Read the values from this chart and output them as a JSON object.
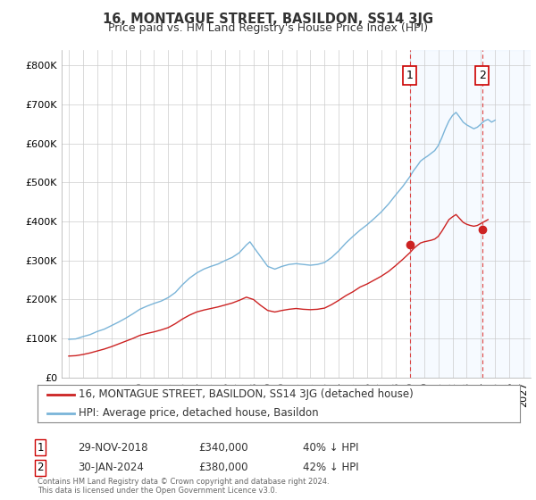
{
  "title": "16, MONTAGUE STREET, BASILDON, SS14 3JG",
  "subtitle": "Price paid vs. HM Land Registry's House Price Index (HPI)",
  "hpi_color": "#7ab4d8",
  "price_color": "#cc2222",
  "dashed_line_color": "#dd4444",
  "background_color": "#ffffff",
  "grid_color": "#cccccc",
  "shaded_color": "#ddeeff",
  "title_fontsize": 10.5,
  "subtitle_fontsize": 9,
  "tick_fontsize": 8,
  "legend_fontsize": 8.5,
  "sale1_date_num": 2019.0,
  "sale2_date_num": 2024.08,
  "sale1_price": 340000,
  "sale2_price": 380000,
  "ylim": [
    0,
    840000
  ],
  "yticks": [
    0,
    100000,
    200000,
    300000,
    400000,
    500000,
    600000,
    700000,
    800000
  ],
  "ytick_labels": [
    "£0",
    "£100K",
    "£200K",
    "£300K",
    "£400K",
    "£500K",
    "£600K",
    "£700K",
    "£800K"
  ],
  "xmin": 1994.5,
  "xmax": 2027.5,
  "xticks": [
    1995,
    1996,
    1997,
    1998,
    1999,
    2000,
    2001,
    2002,
    2003,
    2004,
    2005,
    2006,
    2007,
    2008,
    2009,
    2010,
    2011,
    2012,
    2013,
    2014,
    2015,
    2016,
    2017,
    2018,
    2019,
    2020,
    2021,
    2022,
    2023,
    2024,
    2025,
    2026,
    2027
  ],
  "legend_line1": "16, MONTAGUE STREET, BASILDON, SS14 3JG (detached house)",
  "legend_line2": "HPI: Average price, detached house, Basildon",
  "footnote": "Contains HM Land Registry data © Crown copyright and database right 2024.\nThis data is licensed under the Open Government Licence v3.0.",
  "hpi_years": [
    1995,
    1995.5,
    1996,
    1996.5,
    1997,
    1997.5,
    1998,
    1998.5,
    1999,
    1999.5,
    2000,
    2000.5,
    2001,
    2001.5,
    2002,
    2002.5,
    2003,
    2003.5,
    2004,
    2004.5,
    2005,
    2005.5,
    2006,
    2006.5,
    2007,
    2007.25,
    2007.5,
    2007.75,
    2008,
    2008.5,
    2009,
    2009.5,
    2010,
    2010.5,
    2011,
    2011.5,
    2012,
    2012.5,
    2013,
    2013.5,
    2014,
    2014.5,
    2015,
    2015.5,
    2016,
    2016.5,
    2017,
    2017.5,
    2018,
    2018.5,
    2019,
    2019.25,
    2019.5,
    2019.75,
    2020,
    2020.25,
    2020.5,
    2020.75,
    2021,
    2021.25,
    2021.5,
    2021.75,
    2022,
    2022.25,
    2022.5,
    2022.75,
    2023,
    2023.25,
    2023.5,
    2023.75,
    2024,
    2024.25,
    2024.5,
    2024.75,
    2025
  ],
  "hpi_values": [
    98000,
    99000,
    105000,
    110000,
    118000,
    124000,
    133000,
    142000,
    152000,
    163000,
    175000,
    183000,
    190000,
    196000,
    205000,
    218000,
    238000,
    255000,
    268000,
    278000,
    285000,
    291000,
    300000,
    308000,
    320000,
    330000,
    340000,
    348000,
    335000,
    310000,
    285000,
    278000,
    285000,
    290000,
    292000,
    290000,
    288000,
    290000,
    295000,
    308000,
    325000,
    345000,
    362000,
    378000,
    392000,
    408000,
    425000,
    445000,
    468000,
    490000,
    515000,
    530000,
    542000,
    555000,
    562000,
    568000,
    575000,
    582000,
    595000,
    615000,
    638000,
    658000,
    672000,
    680000,
    668000,
    655000,
    648000,
    643000,
    638000,
    642000,
    650000,
    658000,
    662000,
    655000,
    660000
  ],
  "price_years": [
    1995,
    1995.5,
    1996,
    1996.5,
    1997,
    1997.5,
    1998,
    1998.5,
    1999,
    1999.5,
    2000,
    2000.5,
    2001,
    2001.5,
    2002,
    2002.5,
    2003,
    2003.5,
    2004,
    2004.5,
    2005,
    2005.5,
    2006,
    2006.5,
    2007,
    2007.5,
    2008,
    2008.5,
    2009,
    2009.5,
    2010,
    2010.5,
    2011,
    2011.5,
    2012,
    2012.5,
    2013,
    2013.5,
    2014,
    2014.5,
    2015,
    2015.5,
    2016,
    2016.5,
    2017,
    2017.5,
    2018,
    2018.5,
    2019,
    2019.25,
    2019.5,
    2019.75,
    2020,
    2020.25,
    2020.5,
    2020.75,
    2021,
    2021.25,
    2021.5,
    2021.75,
    2022,
    2022.25,
    2022.5,
    2022.75,
    2023,
    2023.25,
    2023.5,
    2023.75,
    2024,
    2024.25,
    2024.5
  ],
  "price_values": [
    55000,
    56000,
    59000,
    63000,
    68000,
    73000,
    79000,
    86000,
    93000,
    100000,
    108000,
    113000,
    117000,
    122000,
    128000,
    138000,
    150000,
    160000,
    168000,
    173000,
    177000,
    181000,
    186000,
    191000,
    198000,
    206000,
    200000,
    185000,
    172000,
    168000,
    172000,
    175000,
    177000,
    175000,
    174000,
    175000,
    178000,
    187000,
    198000,
    210000,
    220000,
    232000,
    240000,
    250000,
    260000,
    272000,
    287000,
    303000,
    320000,
    330000,
    338000,
    345000,
    348000,
    350000,
    352000,
    355000,
    362000,
    375000,
    390000,
    405000,
    412000,
    418000,
    408000,
    398000,
    393000,
    390000,
    388000,
    390000,
    395000,
    400000,
    405000
  ]
}
